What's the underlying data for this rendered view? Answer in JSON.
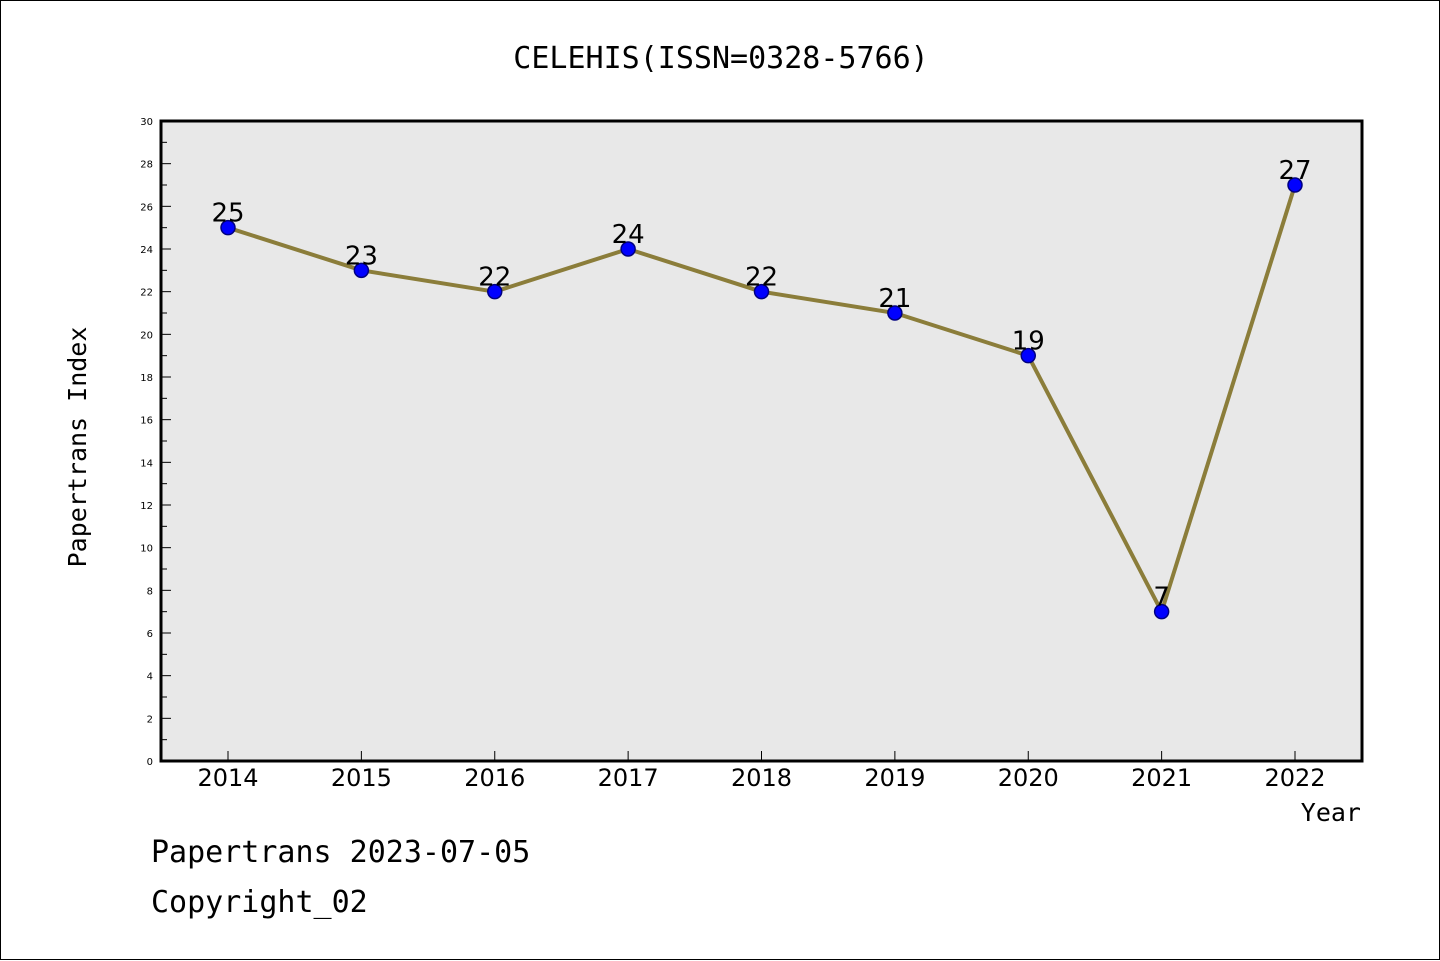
{
  "chart_data": {
    "type": "line",
    "title": "CELEHIS(ISSN=0328-5766)",
    "xlabel": "Year",
    "ylabel": "Papertrans Index",
    "categories": [
      "2014",
      "2015",
      "2016",
      "2017",
      "2018",
      "2019",
      "2020",
      "2021",
      "2022"
    ],
    "series": [
      {
        "values": [
          25,
          23,
          22,
          24,
          22,
          21,
          19,
          7,
          27
        ]
      }
    ],
    "ylim": [
      0,
      30
    ],
    "yticks": [
      0,
      2,
      4,
      6,
      8,
      10,
      12,
      14,
      16,
      18,
      20,
      22,
      24,
      26,
      28,
      30
    ],
    "grid": false,
    "legend": "none",
    "data_labels": true,
    "colors": {
      "line": "#8b7d3a",
      "marker": "#0000ff",
      "marker_edge": "#000080",
      "plot_background": "#e8e8e8"
    }
  },
  "footer": {
    "line1": "Papertrans 2023-07-05",
    "line2": "Copyright_02"
  }
}
